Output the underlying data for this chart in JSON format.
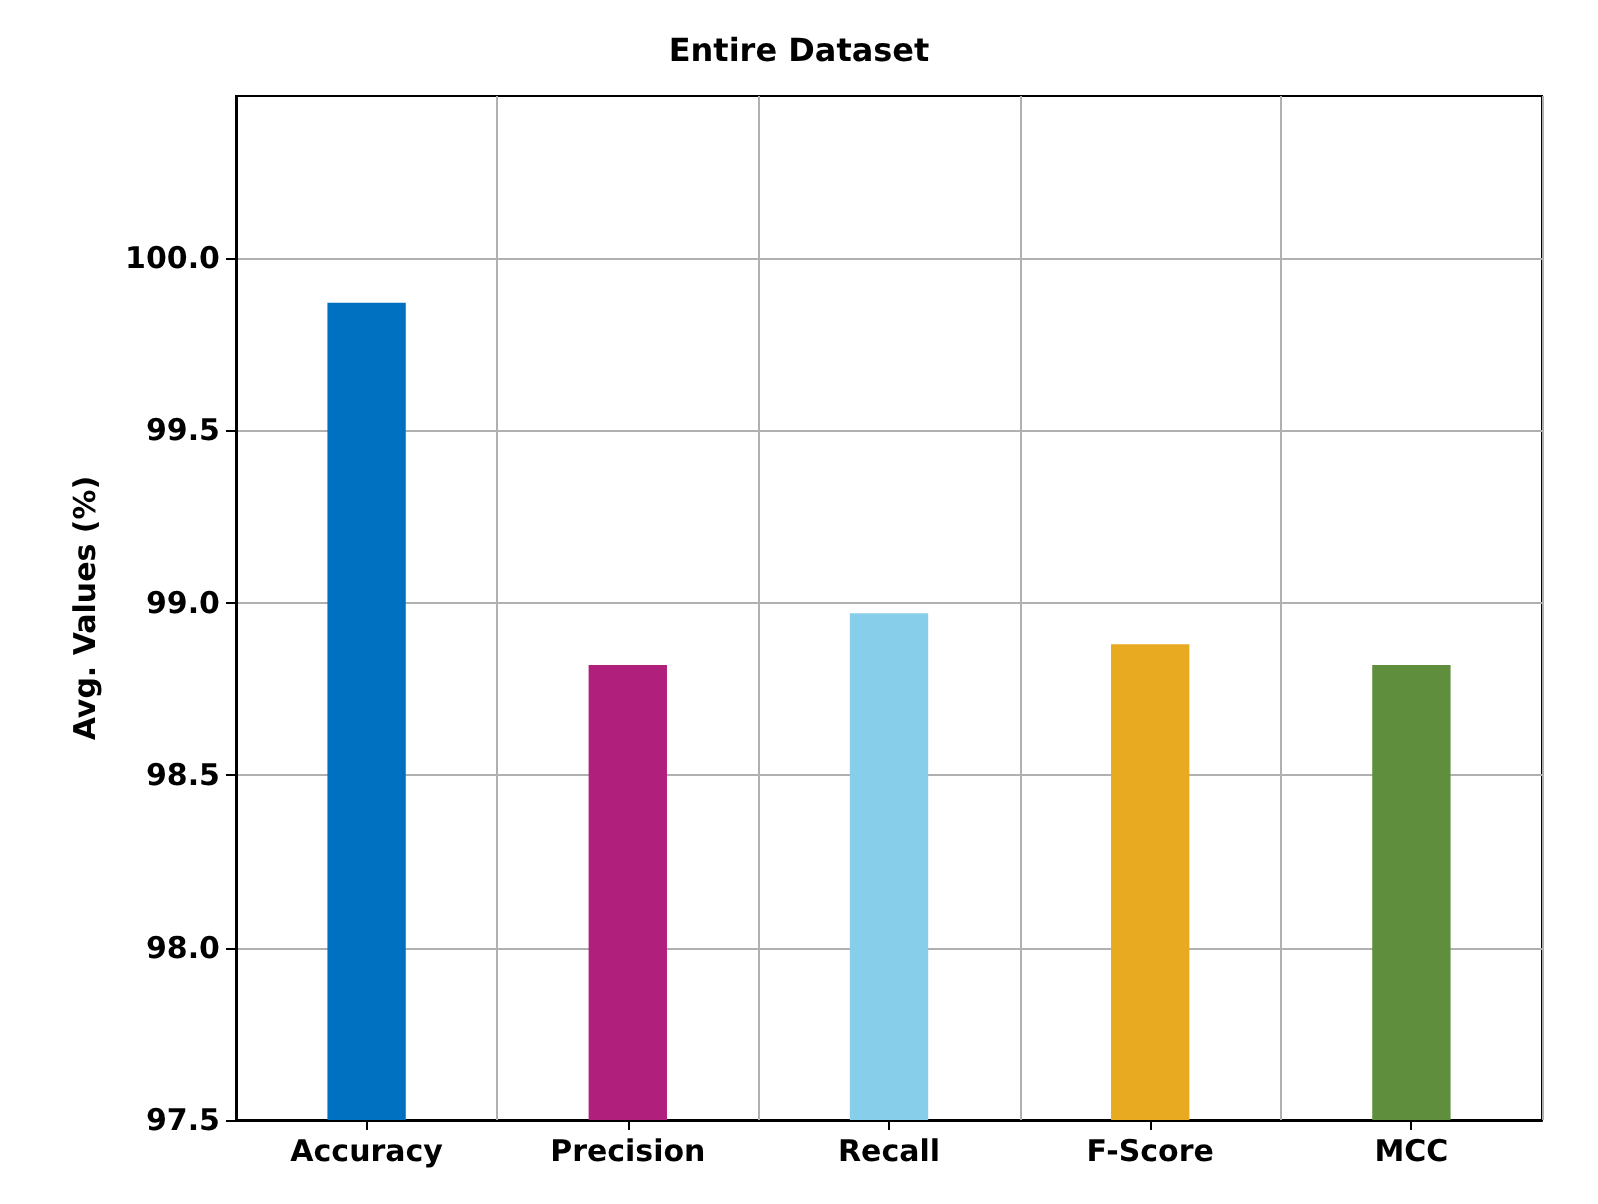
{
  "chart_data": {
    "type": "bar",
    "title": "Entire Dataset",
    "ylabel": "Avg. Values (%)",
    "categories": [
      "Accuracy",
      "Precision",
      "Recall",
      "F-Score",
      "MCC"
    ],
    "values": [
      99.87,
      98.82,
      98.97,
      98.88,
      98.82
    ],
    "colors": [
      "#0070c0",
      "#b01f7c",
      "#87ceeb",
      "#e8aa20",
      "#5f8f3c"
    ],
    "ylim": [
      97.5,
      100.47
    ],
    "yticks": [
      97.5,
      {
        "value": 98,
        "label": "98.0"
      },
      98.5,
      {
        "value": 99,
        "label": "99.0"
      },
      99.5,
      {
        "value": 100,
        "label": "100.0"
      }
    ],
    "grid": true
  }
}
